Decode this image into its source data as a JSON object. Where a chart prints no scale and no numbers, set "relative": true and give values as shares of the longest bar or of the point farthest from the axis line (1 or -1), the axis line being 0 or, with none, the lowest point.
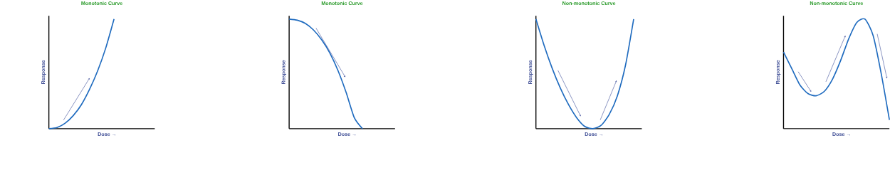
{
  "chart_data": [
    {
      "type": "line",
      "relative": true,
      "title": "Monotonic Curve",
      "xlabel": "Dose →",
      "ylabel": "Response",
      "categories": [
        null,
        null,
        null,
        null,
        null,
        null,
        null,
        null,
        null,
        null,
        null,
        null,
        null,
        null
      ],
      "series": [
        {
          "color": "#1f6bbf",
          "values": [
            0,
            0.01,
            0.05,
            0.12,
            0.22,
            0.36,
            0.53,
            0.74,
            1,
            null,
            null,
            null,
            null,
            null
          ]
        }
      ]
    },
    {
      "type": "line",
      "relative": true,
      "title": "Monotonic Curve",
      "xlabel": "Dose →",
      "ylabel": "Response",
      "categories": [
        null,
        null,
        null,
        null,
        null,
        null,
        null,
        null,
        null,
        null,
        null,
        null,
        null,
        null
      ],
      "series": [
        {
          "color": "#1f6bbf",
          "values": [
            1,
            0.99,
            0.96,
            0.9,
            0.81,
            0.69,
            0.53,
            0.33,
            0.1,
            0,
            null,
            null,
            null,
            null
          ]
        }
      ]
    },
    {
      "type": "line",
      "relative": true,
      "title": "Non-monotonic Curve",
      "xlabel": "Dose →",
      "ylabel": "Response",
      "categories": [
        null,
        null,
        null,
        null,
        null,
        null,
        null,
        null,
        null,
        null,
        null,
        null,
        null,
        null
      ],
      "series": [
        {
          "color": "#1f6bbf",
          "values": [
            1,
            0.76,
            0.55,
            0.37,
            0.22,
            0.1,
            0.02,
            0,
            0.03,
            0.13,
            0.3,
            0.58,
            1,
            null
          ]
        }
      ]
    },
    {
      "type": "line",
      "relative": true,
      "title": "Non-monotonic Curve",
      "xlabel": "Dose →",
      "ylabel": "Response",
      "categories": [
        null,
        null,
        null,
        null,
        null,
        null,
        null,
        null,
        null,
        null,
        null,
        null,
        null,
        null
      ],
      "series": [
        {
          "color": "#1f6bbf",
          "values": [
            0.7,
            0.55,
            0.4,
            0.32,
            0.3,
            0.34,
            0.45,
            0.62,
            0.82,
            0.97,
            1,
            0.85,
            0.5,
            0.08
          ]
        }
      ]
    }
  ]
}
